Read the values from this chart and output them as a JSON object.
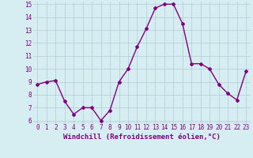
{
  "x": [
    0,
    1,
    2,
    3,
    4,
    5,
    6,
    7,
    8,
    9,
    10,
    11,
    12,
    13,
    14,
    15,
    16,
    17,
    18,
    19,
    20,
    21,
    22,
    23
  ],
  "y": [
    8.8,
    9.0,
    9.1,
    7.5,
    6.5,
    7.0,
    7.0,
    6.0,
    6.8,
    9.0,
    10.0,
    11.7,
    13.1,
    14.7,
    15.0,
    15.0,
    13.5,
    10.4,
    10.4,
    10.0,
    8.8,
    8.1,
    7.6,
    9.8
  ],
  "line_color": "#800080",
  "marker": "D",
  "marker_size": 2,
  "bg_color": "#d6eef2",
  "grid_color": "#b0ccd4",
  "xlabel": "Windchill (Refroidissement éolien,°C)",
  "xlabel_color": "#800080",
  "tick_color": "#800080",
  "ylim_min": 6,
  "ylim_max": 15,
  "xlim_min": -0.5,
  "xlim_max": 23.5,
  "yticks": [
    6,
    7,
    8,
    9,
    10,
    11,
    12,
    13,
    14,
    15
  ],
  "xticks": [
    0,
    1,
    2,
    3,
    4,
    5,
    6,
    7,
    8,
    9,
    10,
    11,
    12,
    13,
    14,
    15,
    16,
    17,
    18,
    19,
    20,
    21,
    22,
    23
  ],
  "tick_fontsize": 5.5,
  "xlabel_fontsize": 6.5,
  "linewidth": 1.0
}
